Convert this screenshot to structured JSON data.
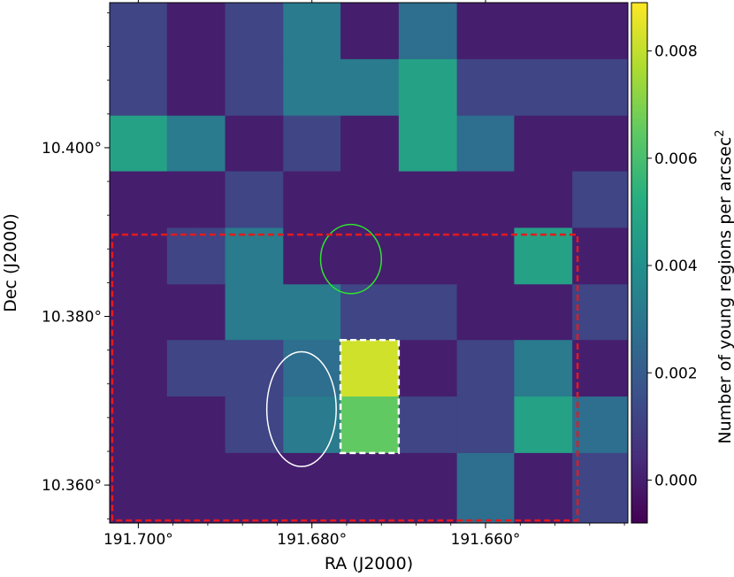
{
  "chart_data": {
    "type": "heatmap",
    "title": "",
    "xlabel": "RA (J2000)",
    "ylabel": "Dec (J2000)",
    "x_ticks": [
      {
        "value": 191.7,
        "label": "191.700°"
      },
      {
        "value": 191.68,
        "label": "191.680°"
      },
      {
        "value": 191.66,
        "label": "191.660°"
      }
    ],
    "y_ticks": [
      {
        "value": 10.4,
        "label": "10.400°"
      },
      {
        "value": 10.38,
        "label": "10.380°"
      },
      {
        "value": 10.36,
        "label": "10.360°"
      }
    ],
    "grid": false,
    "colormap": "viridis",
    "colorbar": {
      "label": "Number of young regions per arcsec",
      "label_superscript": "2",
      "vmin": -0.0008,
      "vmax": 0.0089,
      "ticks": [
        {
          "value": 0.0,
          "label": "0.000"
        },
        {
          "value": 0.002,
          "label": "0.002"
        },
        {
          "value": 0.004,
          "label": "0.004"
        },
        {
          "value": 0.006,
          "label": "0.006"
        },
        {
          "value": 0.008,
          "label": "0.008"
        }
      ]
    },
    "pixel_grid": {
      "ra_edges": [
        191.7033,
        191.6967,
        191.69,
        191.6833,
        191.6767,
        191.67,
        191.6633,
        191.6567,
        191.65,
        191.6433
      ],
      "dec_edges": [
        10.4172,
        10.4105,
        10.4038,
        10.3972,
        10.3905,
        10.3838,
        10.3772,
        10.3705,
        10.3638,
        10.3572,
        10.3555
      ]
    },
    "values": [
      [
        0.0012,
        0.0,
        0.0012,
        0.0032,
        0.0,
        0.0027,
        0.0,
        0.0,
        0.0
      ],
      [
        0.0012,
        0.0,
        0.0012,
        0.0032,
        0.0032,
        0.0047,
        0.0012,
        0.0012,
        0.0012
      ],
      [
        0.0047,
        0.0032,
        0.0,
        0.0012,
        0.0,
        0.0047,
        0.0027,
        0.0,
        0.0
      ],
      [
        0.0,
        0.0,
        0.0012,
        0.0,
        0.0,
        0.0,
        0.0,
        0.0,
        0.0012
      ],
      [
        0.0,
        0.0012,
        0.0032,
        0.0,
        0.0,
        0.0,
        0.0,
        0.0047,
        0.0
      ],
      [
        0.0,
        0.0,
        0.0032,
        0.0032,
        0.0012,
        0.0012,
        0.0,
        0.0,
        0.0012
      ],
      [
        0.0,
        0.0012,
        0.0012,
        0.0027,
        0.0082,
        0.0,
        0.0012,
        0.0032,
        0.0
      ],
      [
        0.0,
        0.0,
        0.0012,
        0.0032,
        0.0065,
        0.0012,
        0.0012,
        0.0047,
        0.0027
      ],
      [
        0.0,
        0.0,
        0.0,
        0.0,
        0.0,
        0.0,
        0.0027,
        0.0,
        0.0012
      ],
      [
        0.0,
        0.0,
        0.0,
        0.0,
        0.0,
        0.0,
        0.0027,
        0.0,
        0.0012
      ]
    ],
    "overlays": [
      {
        "name": "green-ellipse",
        "shape": "ellipse",
        "color": "#2ee62e",
        "style": "solid",
        "center": [
          191.6755,
          10.3868
        ],
        "ra_half_width": 0.0035,
        "dec_half_height": 0.0041
      },
      {
        "name": "white-circle",
        "shape": "circle",
        "color": "#ffffff",
        "style": "solid",
        "center": [
          191.6812,
          10.369
        ],
        "ra_radius": 0.004,
        "dec_radius": 0.0068
      },
      {
        "name": "white-dashed-box",
        "shape": "rect",
        "color": "#ffffff",
        "style": "dashed",
        "ra_range": [
          191.6767,
          191.67
        ],
        "dec_range": [
          10.3638,
          10.3772
        ]
      },
      {
        "name": "red-dashed-box",
        "shape": "rect",
        "color": "#e41a1c",
        "style": "dashed",
        "ra_range": [
          191.703,
          191.6494
        ],
        "dec_range": [
          10.3558,
          10.3897
        ]
      }
    ]
  }
}
